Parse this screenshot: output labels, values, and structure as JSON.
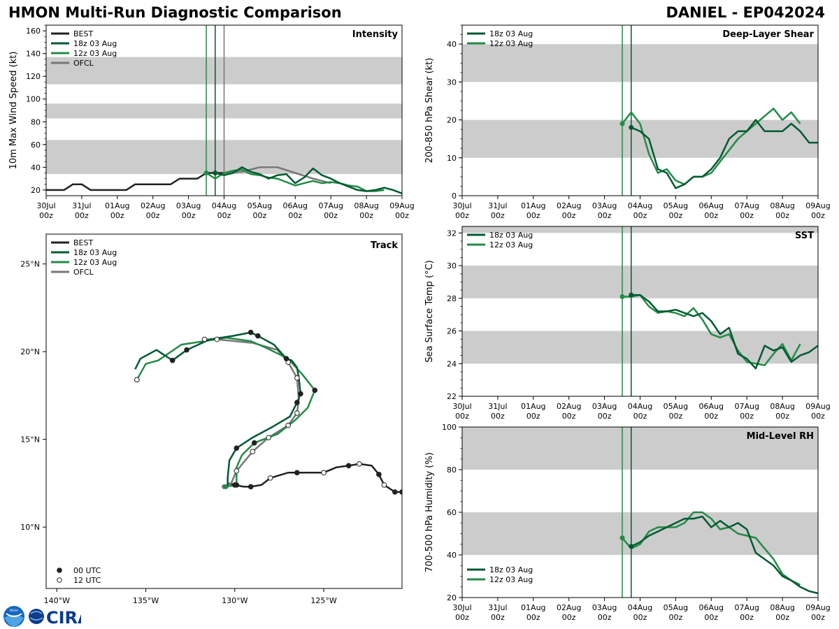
{
  "header": {
    "title": "HMON Multi-Run Diagnostic Comparison",
    "storm": "DANIEL - EP042024"
  },
  "logo": {
    "text": "CIRA",
    "noaa_text": "NOAA"
  },
  "colors": {
    "best": "#222222",
    "run18": "#005a32",
    "run12": "#238b45",
    "ofcl": "#777777",
    "band": "#cccccc"
  },
  "time_axis": {
    "ticks": [
      {
        "x": 0,
        "line1": "30Jul",
        "line2": "00z"
      },
      {
        "x": 24,
        "line1": "31Jul",
        "line2": "00z"
      },
      {
        "x": 48,
        "line1": "01Aug",
        "line2": "00z"
      },
      {
        "x": 72,
        "line1": "02Aug",
        "line2": "00z"
      },
      {
        "x": 96,
        "line1": "03Aug",
        "line2": "00z"
      },
      {
        "x": 120,
        "line1": "04Aug",
        "line2": "00z"
      },
      {
        "x": 144,
        "line1": "05Aug",
        "line2": "00z"
      },
      {
        "x": 168,
        "line1": "06Aug",
        "line2": "00z"
      },
      {
        "x": 192,
        "line1": "07Aug",
        "line2": "00z"
      },
      {
        "x": 216,
        "line1": "08Aug",
        "line2": "00z"
      },
      {
        "x": 240,
        "line1": "09Aug",
        "line2": "00z"
      }
    ],
    "init_12z": 108,
    "init_18z": 114,
    "ofcl_init": 120
  },
  "chart_data": [
    {
      "id": "intensity",
      "type": "line",
      "title": "Intensity",
      "ylabel": "10m Max Wind Speed (kt)",
      "xlim": [
        0,
        240
      ],
      "ylim": [
        15,
        165
      ],
      "yticks": [
        20,
        40,
        60,
        80,
        100,
        120,
        140,
        160
      ],
      "bands": [
        [
          34,
          64
        ],
        [
          83,
          96
        ],
        [
          113,
          137
        ]
      ],
      "legend": [
        {
          "key": "best",
          "label": "BEST"
        },
        {
          "key": "run18",
          "label": "18z 03 Aug"
        },
        {
          "key": "run12",
          "label": "12z 03 Aug"
        },
        {
          "key": "ofcl",
          "label": "OFCL"
        }
      ],
      "series": [
        {
          "key": "best",
          "name": "BEST",
          "x": [
            0,
            6,
            12,
            18,
            24,
            30,
            36,
            42,
            48,
            54,
            60,
            66,
            72,
            78,
            84,
            90,
            96,
            102,
            108,
            114,
            120
          ],
          "y": [
            20,
            20,
            20,
            25,
            25,
            20,
            20,
            20,
            20,
            20,
            25,
            25,
            25,
            25,
            25,
            30,
            30,
            30,
            35,
            35,
            35
          ]
        },
        {
          "key": "run18",
          "name": "18z 03 Aug",
          "x": [
            114,
            120,
            126,
            132,
            138,
            144,
            150,
            156,
            162,
            168,
            174,
            180,
            186,
            192,
            198,
            204,
            210,
            216,
            222,
            228,
            234,
            240
          ],
          "y": [
            35,
            33,
            35,
            40,
            36,
            34,
            30,
            33,
            34,
            26,
            31,
            39,
            33,
            30,
            26,
            23,
            20,
            19,
            20,
            22,
            20,
            17
          ]
        },
        {
          "key": "run12",
          "name": "12z 03 Aug",
          "x": [
            108,
            114,
            120,
            126,
            132,
            138,
            144,
            150,
            156,
            162,
            168,
            174,
            180,
            186,
            192,
            198,
            204,
            210,
            216,
            222,
            228
          ],
          "y": [
            35,
            30,
            35,
            37,
            38,
            34,
            33,
            31,
            30,
            27,
            24,
            26,
            28,
            26,
            27,
            26,
            24,
            23,
            19,
            19,
            20
          ]
        },
        {
          "key": "ofcl",
          "name": "OFCL",
          "x": [
            120,
            132,
            144,
            156,
            168,
            180,
            192
          ],
          "y": [
            35,
            36,
            40,
            40,
            35,
            30,
            26
          ]
        }
      ]
    },
    {
      "id": "shear",
      "type": "line",
      "title": "Deep-Layer Shear",
      "ylabel": "200-850 hPa Shear (kt)",
      "xlim": [
        0,
        240
      ],
      "ylim": [
        0,
        45
      ],
      "yticks": [
        0,
        10,
        20,
        30,
        40
      ],
      "bands": [
        [
          10,
          20
        ],
        [
          30,
          40
        ]
      ],
      "legend": [
        {
          "key": "run18",
          "label": "18z 03 Aug"
        },
        {
          "key": "run12",
          "label": "12z 03 Aug"
        }
      ],
      "series": [
        {
          "key": "run18",
          "name": "18z 03 Aug",
          "x": [
            114,
            120,
            126,
            132,
            138,
            144,
            150,
            156,
            162,
            168,
            174,
            180,
            186,
            192,
            198,
            204,
            210,
            216,
            222,
            228,
            234,
            240
          ],
          "y": [
            18,
            17,
            15,
            7,
            6,
            2,
            3,
            5,
            5,
            7,
            10,
            15,
            17,
            17,
            20,
            17,
            17,
            17,
            19,
            17,
            14,
            14
          ]
        },
        {
          "key": "run12",
          "name": "12z 03 Aug",
          "x": [
            108,
            114,
            120,
            126,
            132,
            138,
            144,
            150,
            156,
            162,
            168,
            174,
            180,
            186,
            192,
            198,
            204,
            210,
            216,
            222,
            228
          ],
          "y": [
            19,
            22,
            19,
            11,
            6,
            7,
            4,
            3,
            5,
            5,
            6,
            9,
            12,
            15,
            17,
            19,
            21,
            23,
            20,
            22,
            19
          ]
        }
      ]
    },
    {
      "id": "sst",
      "type": "line",
      "title": "SST",
      "ylabel": "Sea Surface Temp (°C)",
      "xlim": [
        0,
        240
      ],
      "ylim": [
        22,
        32.4
      ],
      "yticks": [
        22,
        24,
        26,
        28,
        30,
        32
      ],
      "bands": [
        [
          24,
          26
        ],
        [
          28,
          30
        ],
        [
          32,
          32.4
        ]
      ],
      "legend": [
        {
          "key": "run18",
          "label": "18z 03 Aug"
        },
        {
          "key": "run12",
          "label": "12z 03 Aug"
        }
      ],
      "series": [
        {
          "key": "run18",
          "name": "18z 03 Aug",
          "x": [
            114,
            120,
            126,
            132,
            138,
            144,
            150,
            156,
            162,
            168,
            174,
            180,
            186,
            192,
            198,
            204,
            210,
            216,
            222,
            228,
            234,
            240
          ],
          "y": [
            28.2,
            28.2,
            27.8,
            27.2,
            27.2,
            27.3,
            27.1,
            26.9,
            27.1,
            26.6,
            25.8,
            26.2,
            24.6,
            24.3,
            23.7,
            25.1,
            24.8,
            25.0,
            24.1,
            24.5,
            24.7,
            25.1
          ]
        },
        {
          "key": "run12",
          "name": "12z 03 Aug",
          "x": [
            108,
            114,
            120,
            126,
            132,
            138,
            144,
            150,
            156,
            162,
            168,
            174,
            180,
            186,
            192,
            198,
            204,
            210,
            216,
            222,
            228
          ],
          "y": [
            28.1,
            28.1,
            28.2,
            27.5,
            27.1,
            27.2,
            27.1,
            26.9,
            27.4,
            26.7,
            25.8,
            25.6,
            25.8,
            24.8,
            24.1,
            24.0,
            23.9,
            24.6,
            25.2,
            24.2,
            25.2
          ]
        }
      ]
    },
    {
      "id": "rh",
      "type": "line",
      "title": "Mid-Level RH",
      "ylabel": "700-500 hPa Humidity (%)",
      "xlim": [
        0,
        240
      ],
      "ylim": [
        20,
        100
      ],
      "yticks": [
        20,
        40,
        60,
        80,
        100
      ],
      "bands": [
        [
          40,
          60
        ],
        [
          80,
          100
        ]
      ],
      "legend": [
        {
          "key": "run18",
          "label": "18z 03 Aug"
        },
        {
          "key": "run12",
          "label": "12z 03 Aug"
        }
      ],
      "series": [
        {
          "key": "run18",
          "name": "18z 03 Aug",
          "x": [
            114,
            120,
            126,
            132,
            138,
            144,
            150,
            156,
            162,
            168,
            174,
            180,
            186,
            192,
            198,
            204,
            210,
            216,
            222,
            228,
            234,
            240
          ],
          "y": [
            44,
            46,
            49,
            51,
            53,
            55,
            57,
            57,
            58,
            53,
            56,
            53,
            55,
            52,
            41,
            38,
            35,
            30,
            28,
            25,
            23,
            22
          ]
        },
        {
          "key": "run12",
          "name": "12z 03 Aug",
          "x": [
            108,
            114,
            120,
            126,
            132,
            138,
            144,
            150,
            156,
            162,
            168,
            174,
            180,
            186,
            192,
            198,
            204,
            210,
            216,
            222,
            228
          ],
          "y": [
            48,
            43,
            45,
            51,
            53,
            53,
            53,
            55,
            60,
            60,
            57,
            52,
            53,
            50,
            49,
            48,
            43,
            38,
            31,
            28,
            26
          ]
        }
      ]
    },
    {
      "id": "track",
      "type": "scatter",
      "title": "Track",
      "xlim": [
        -140.6,
        -120.6
      ],
      "ylim": [
        6.5,
        26.7
      ],
      "xticks": [
        {
          "v": -140,
          "label": "140°W"
        },
        {
          "v": -135,
          "label": "135°W"
        },
        {
          "v": -130,
          "label": "130°W"
        },
        {
          "v": -125,
          "label": "125°W"
        }
      ],
      "yticks": [
        {
          "v": 10,
          "label": "10°N"
        },
        {
          "v": 15,
          "label": "15°N"
        },
        {
          "v": 20,
          "label": "20°N"
        },
        {
          "v": 25,
          "label": "25°N"
        }
      ],
      "legend": [
        {
          "key": "best",
          "label": "BEST"
        },
        {
          "key": "run18",
          "label": "18z 03 Aug"
        },
        {
          "key": "run12",
          "label": "12z 03 Aug"
        },
        {
          "key": "ofcl",
          "label": "OFCL"
        }
      ],
      "marker_legend": [
        {
          "fill": "filled",
          "label": "00 UTC"
        },
        {
          "fill": "open",
          "label": "12 UTC"
        }
      ],
      "series": [
        {
          "key": "best",
          "name": "BEST",
          "lon": [
            -120.6,
            -121.0,
            -121.6,
            -121.9,
            -122.3,
            -123.0,
            -123.6,
            -124.3,
            -125.0,
            -126.5,
            -127.0,
            -128.0,
            -128.5,
            -129.1,
            -129.5,
            -130.0,
            -130.4
          ],
          "lat": [
            12.0,
            12.0,
            12.4,
            13.0,
            13.5,
            13.6,
            13.5,
            13.4,
            13.1,
            13.1,
            13.1,
            12.8,
            12.4,
            12.3,
            12.3,
            12.4,
            12.5
          ],
          "markers": [
            "f",
            "f",
            "o",
            "f",
            "n",
            "o",
            "f",
            "n",
            "o",
            "f",
            "n",
            "o",
            "n",
            "f",
            "n",
            "f",
            "n"
          ]
        },
        {
          "key": "run18",
          "name": "18z 03 Aug",
          "lon": [
            -130.4,
            -130.4,
            -130.3,
            -129.9,
            -129.0,
            -127.9,
            -126.9,
            -126.5,
            -126.3,
            -126.4,
            -126.5,
            -126.8,
            -127.1,
            -127.8,
            -128.7,
            -129.1,
            -130.1,
            -131.4,
            -132.7,
            -133.5,
            -134.4,
            -135.3,
            -135.6
          ],
          "lat": [
            12.3,
            12.8,
            13.8,
            14.5,
            15.1,
            15.7,
            16.3,
            17.1,
            17.6,
            18.5,
            19.1,
            19.5,
            19.6,
            20.4,
            20.9,
            21.1,
            20.9,
            20.7,
            20.1,
            19.5,
            20.1,
            19.6,
            19.0
          ],
          "markers": [
            "n",
            "n",
            "n",
            "f",
            "n",
            "n",
            "n",
            "f",
            "f",
            "n",
            "n",
            "n",
            "f",
            "n",
            "f",
            "f",
            "n",
            "n",
            "f",
            "f",
            "n",
            "n",
            "n"
          ]
        },
        {
          "key": "run12",
          "name": "12z 03 Aug",
          "lon": [
            -130.5,
            -129.9,
            -129.9,
            -129.6,
            -128.9,
            -127.6,
            -126.6,
            -125.9,
            -125.5,
            -126.2,
            -127.0,
            -128.2,
            -129.1,
            -130.5,
            -131.7,
            -133.0,
            -134.3,
            -135.0,
            -135.5
          ],
          "lat": [
            12.3,
            12.4,
            13.4,
            14.1,
            14.8,
            15.3,
            16.1,
            16.8,
            17.8,
            18.7,
            19.6,
            20.2,
            20.6,
            20.8,
            20.6,
            20.4,
            19.5,
            19.3,
            18.4
          ],
          "markers": [
            "n",
            "f",
            "n",
            "n",
            "f",
            "n",
            "n",
            "n",
            "f",
            "n",
            "n",
            "n",
            "n",
            "n",
            "n",
            "n",
            "n",
            "n",
            "o"
          ]
        },
        {
          "key": "ofcl",
          "name": "OFCL",
          "lon": [
            -130.6,
            -130.2,
            -129.9,
            -129.0,
            -128.1,
            -127.0,
            -126.5,
            -126.4,
            -126.5,
            -127.0,
            -127.6,
            -129.0,
            -131.0,
            -131.7
          ],
          "lat": [
            12.3,
            12.5,
            13.2,
            14.3,
            15.1,
            15.8,
            16.5,
            17.3,
            18.5,
            19.4,
            20.1,
            20.5,
            20.7,
            20.7
          ],
          "markers": [
            "n",
            "n",
            "o",
            "o",
            "o",
            "o",
            "o",
            "n",
            "o",
            "o",
            "n",
            "n",
            "o",
            "o"
          ]
        }
      ]
    }
  ]
}
